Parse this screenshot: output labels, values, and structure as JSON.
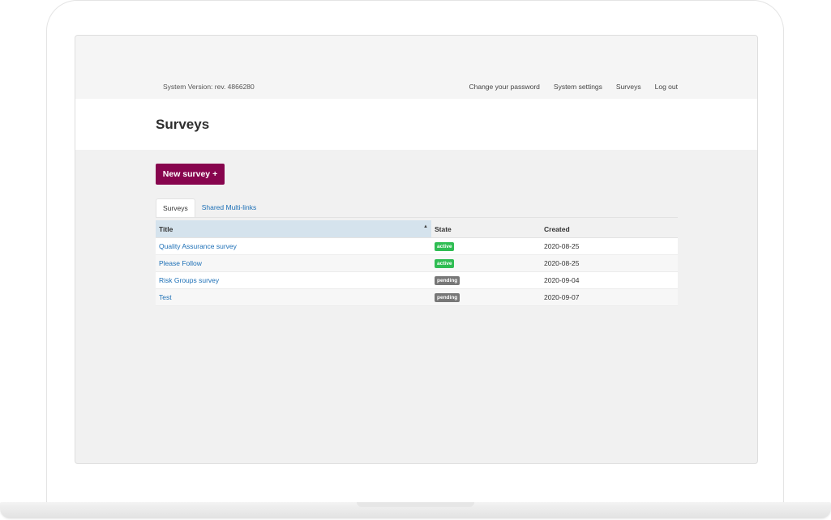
{
  "header": {
    "system_version": "System Version: rev. 4866280",
    "nav": [
      "Change your password",
      "System settings",
      "Surveys",
      "Log out"
    ]
  },
  "page": {
    "title": "Surveys"
  },
  "actions": {
    "new_survey_label": "New survey +"
  },
  "tabs": [
    {
      "label": "Surveys",
      "active": true
    },
    {
      "label": "Shared Multi-links",
      "active": false
    }
  ],
  "table": {
    "columns": [
      "Title",
      "State",
      "Created"
    ],
    "sort_indicator": "▲",
    "rows": [
      {
        "title": "Quality Assurance survey",
        "state": "active",
        "created": "2020-08-25"
      },
      {
        "title": "Please Follow",
        "state": "active",
        "created": "2020-08-25"
      },
      {
        "title": "Risk Groups survey",
        "state": "pending",
        "created": "2020-09-04"
      },
      {
        "title": "Test",
        "state": "pending",
        "created": "2020-09-07"
      }
    ]
  },
  "colors": {
    "primary_button": "#87054e",
    "link": "#1c6fb6",
    "badge_active": "#2fbd53",
    "badge_pending": "#777777",
    "sorted_header": "#d5e3ed"
  }
}
